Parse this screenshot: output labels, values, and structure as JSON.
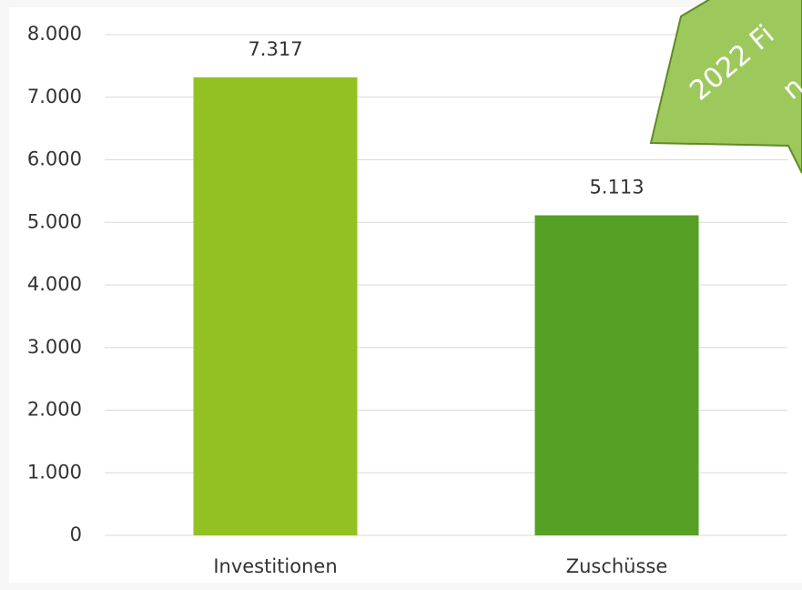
{
  "chart_data": {
    "type": "bar",
    "categories": [
      "Investitionen",
      "Zuschüsse"
    ],
    "series": [
      {
        "name": null,
        "colors": [
          "#93c124",
          "#55a025"
        ],
        "values": [
          7317,
          5113
        ],
        "value_labels": [
          "7.317",
          "5.113"
        ]
      }
    ],
    "ylim": [
      0,
      8000
    ],
    "yticks": [
      0,
      {
        "value": 1000,
        "label": "1.000"
      },
      {
        "value": 2000,
        "label": "2.000"
      },
      {
        "value": 3000,
        "label": "3.000"
      },
      {
        "value": 4000,
        "label": "4.000"
      },
      {
        "value": 5000,
        "label": "5.000"
      },
      {
        "value": 6000,
        "label": "6.000"
      },
      {
        "value": 7000,
        "label": "7.000"
      },
      {
        "value": 8000,
        "label": "8.000"
      }
    ],
    "grid": true,
    "annotations": [
      "2022 Fi",
      "n"
    ]
  }
}
